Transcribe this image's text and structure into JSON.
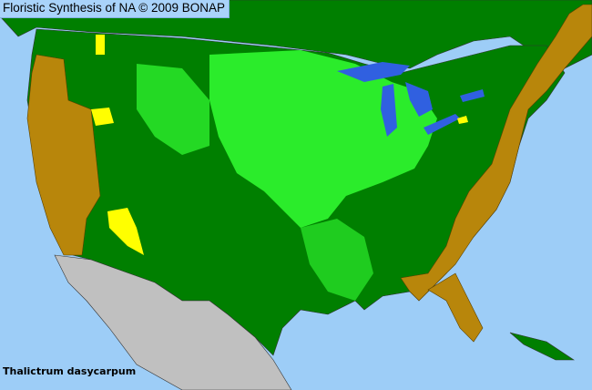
{
  "header": {
    "title": "Floristic Synthesis of NA © 2009 BONAP"
  },
  "species": {
    "name": "Thalictrum dasycarpum"
  },
  "colors": {
    "ocean": "#9dcdf7",
    "present_native": "#008000",
    "present_county": "#33ff33",
    "absent_state": "#b8860b",
    "rare_or_extirpated": "#ffff00",
    "outside_range": "#c0c0c0",
    "county_lines": "#404040"
  }
}
